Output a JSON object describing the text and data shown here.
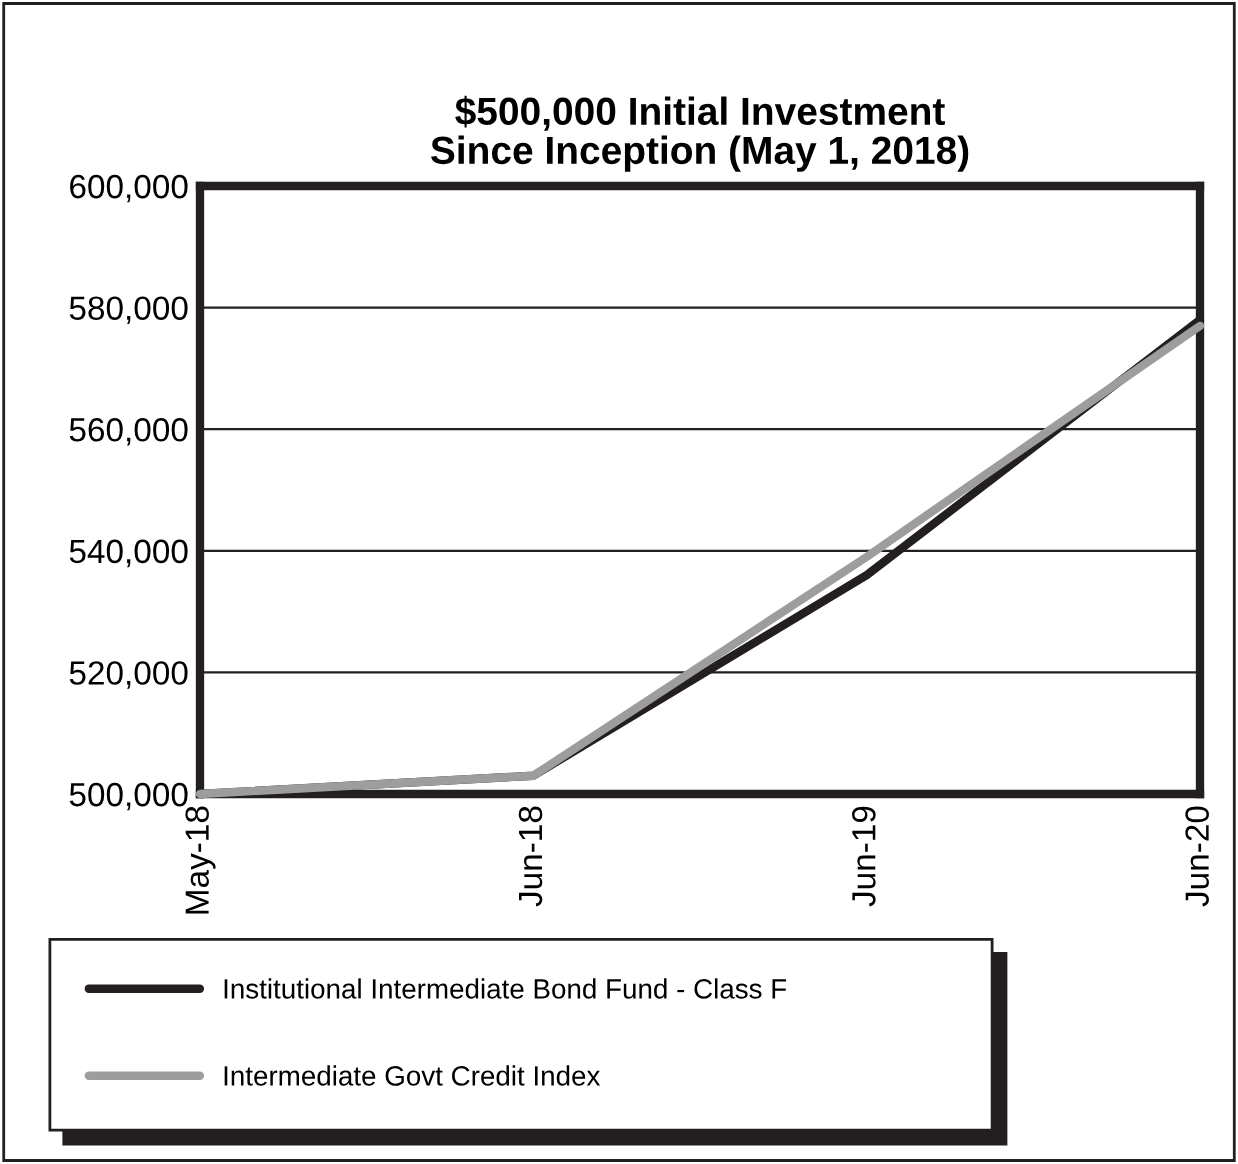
{
  "chart_data": {
    "type": "line",
    "title": "$500,000 Initial Investment\nSince Inception (May 1, 2018)",
    "categories": [
      "May-18",
      "Jun-18",
      "Jun-19",
      "Jun-20"
    ],
    "series": [
      {
        "name": "Institutional Intermediate Bond Fund - Class F",
        "color": "#231f20",
        "values": [
          500000,
          503000,
          536000,
          578000
        ]
      },
      {
        "name": "Intermediate Govt Credit Index",
        "color": "#9d9d9d",
        "values": [
          500000,
          503000,
          539000,
          577000
        ]
      }
    ],
    "ylim": [
      500000,
      600000
    ],
    "yticks": [
      {
        "value": 500000,
        "label": "500,000"
      },
      {
        "value": 520000,
        "label": "520,000"
      },
      {
        "value": 540000,
        "label": "540,000"
      },
      {
        "value": 560000,
        "label": "560,000"
      },
      {
        "value": 580000,
        "label": "580,000"
      },
      {
        "value": 600000,
        "label": "600,000"
      }
    ],
    "grid": "y",
    "legend": "bottom",
    "marker": "none",
    "line_style": "solid"
  }
}
